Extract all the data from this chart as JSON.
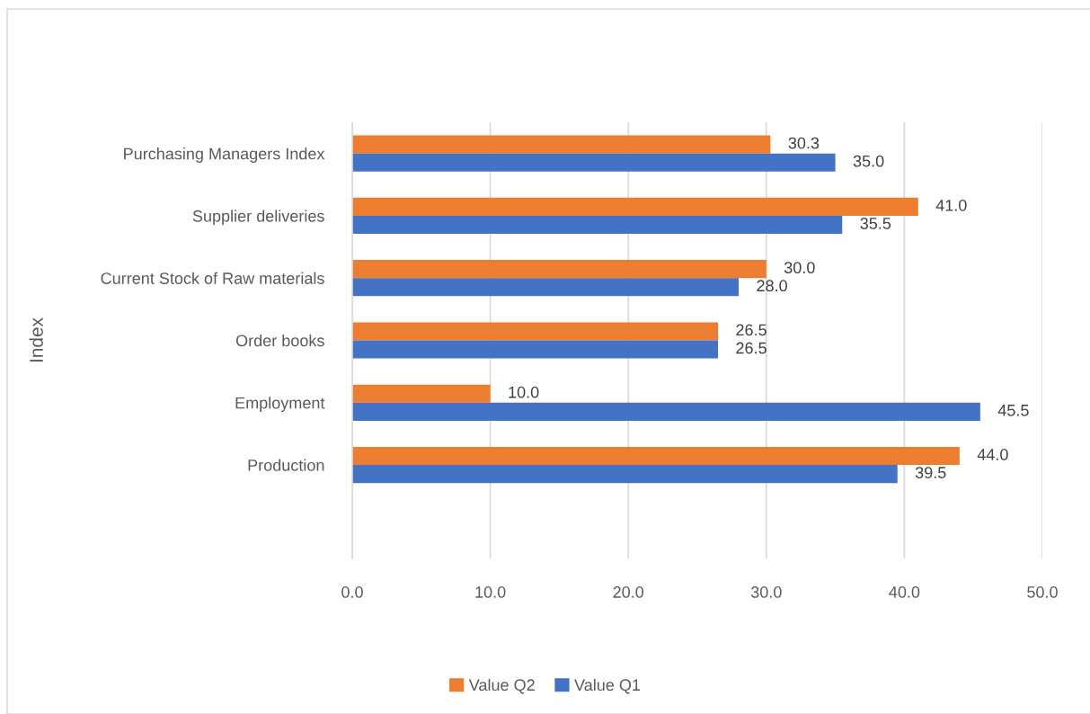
{
  "chart_data": {
    "type": "bar",
    "orientation": "horizontal",
    "ylabel": "Index",
    "categories": [
      "Purchasing Managers Index",
      "Supplier deliveries",
      "Current Stock of Raw materials",
      "Order books",
      "Employment",
      "Production"
    ],
    "series": [
      {
        "name": "Value Q2",
        "color": "#ed7d31",
        "values": [
          30.3,
          41.0,
          30.0,
          26.5,
          10.0,
          44.0
        ],
        "value_labels": [
          "30.3",
          "41.0",
          "30.0",
          "26.5",
          "10.0",
          "44.0"
        ]
      },
      {
        "name": "Value Q1",
        "color": "#4472c4",
        "values": [
          35.0,
          35.5,
          28.0,
          26.5,
          45.5,
          39.5
        ],
        "value_labels": [
          "35.0",
          "35.5",
          "28.0",
          "26.5",
          "45.5",
          "39.5"
        ]
      }
    ],
    "xlim": [
      0,
      50
    ],
    "xticks": [
      {
        "value": 0,
        "label": "0.0"
      },
      {
        "value": 10,
        "label": "10.0"
      },
      {
        "value": 20,
        "label": "20.0"
      },
      {
        "value": 30,
        "label": "30.0"
      },
      {
        "value": 40,
        "label": "40.0"
      },
      {
        "value": 50,
        "label": "50.0"
      }
    ],
    "grid": "x",
    "legend": "bottom"
  }
}
